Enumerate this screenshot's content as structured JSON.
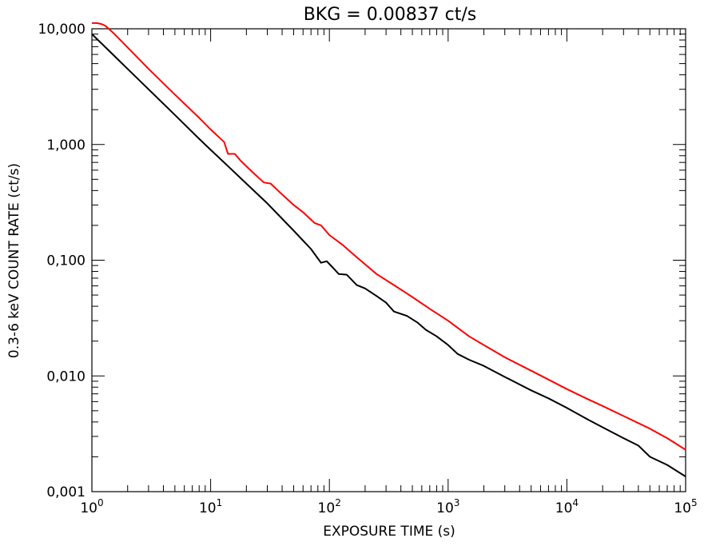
{
  "chart_data": {
    "type": "line",
    "title": "BKG = 0.00837 ct/s",
    "xlabel": "EXPOSURE TIME (s)",
    "ylabel": "0.3-6 keV COUNT RATE (ct/s)",
    "xscale": "log",
    "yscale": "log",
    "xlim": [
      1,
      100000
    ],
    "ylim": [
      0.001,
      10
    ],
    "grid": false,
    "x_ticks": [
      {
        "value": 1,
        "base": "10",
        "exp": "0"
      },
      {
        "value": 10,
        "base": "10",
        "exp": "1"
      },
      {
        "value": 100,
        "base": "10",
        "exp": "2"
      },
      {
        "value": 1000,
        "base": "10",
        "exp": "3"
      },
      {
        "value": 10000,
        "base": "10",
        "exp": "4"
      },
      {
        "value": 100000,
        "base": "10",
        "exp": "5"
      }
    ],
    "y_ticks": [
      {
        "value": 0.001,
        "label": "0,001"
      },
      {
        "value": 0.01,
        "label": "0,010"
      },
      {
        "value": 0.1,
        "label": "0,100"
      },
      {
        "value": 1,
        "label": "1,000"
      },
      {
        "value": 10,
        "label": "10,000"
      }
    ],
    "series": [
      {
        "color": "#ff0000",
        "points": [
          [
            1,
            11.2
          ],
          [
            1.1,
            11.2
          ],
          [
            1.2,
            11.0
          ],
          [
            1.3,
            10.6
          ],
          [
            1.5,
            9.3
          ],
          [
            2,
            6.9
          ],
          [
            3,
            4.5
          ],
          [
            5,
            2.7
          ],
          [
            8,
            1.7
          ],
          [
            10,
            1.35
          ],
          [
            13,
            1.05
          ],
          [
            14,
            0.83
          ],
          [
            16,
            0.83
          ],
          [
            18,
            0.72
          ],
          [
            22,
            0.59
          ],
          [
            28,
            0.47
          ],
          [
            32,
            0.46
          ],
          [
            40,
            0.37
          ],
          [
            50,
            0.3
          ],
          [
            60,
            0.26
          ],
          [
            75,
            0.21
          ],
          [
            85,
            0.2
          ],
          [
            100,
            0.165
          ],
          [
            130,
            0.135
          ],
          [
            170,
            0.106
          ],
          [
            250,
            0.076
          ],
          [
            350,
            0.061
          ],
          [
            500,
            0.048
          ],
          [
            700,
            0.038
          ],
          [
            1000,
            0.03
          ],
          [
            1500,
            0.022
          ],
          [
            2000,
            0.0185
          ],
          [
            3000,
            0.0145
          ],
          [
            5000,
            0.0111
          ],
          [
            7000,
            0.0093
          ],
          [
            10000,
            0.0077
          ],
          [
            15000,
            0.0063
          ],
          [
            20000,
            0.0055
          ],
          [
            30000,
            0.0045
          ],
          [
            50000,
            0.0035
          ],
          [
            70000,
            0.0029
          ],
          [
            100000,
            0.0023
          ]
        ]
      },
      {
        "color": "#000000",
        "points": [
          [
            1,
            9.0
          ],
          [
            1.2,
            7.5
          ],
          [
            1.5,
            6.0
          ],
          [
            2,
            4.5
          ],
          [
            3,
            3.0
          ],
          [
            5,
            1.8
          ],
          [
            8,
            1.12
          ],
          [
            10,
            0.9
          ],
          [
            14,
            0.65
          ],
          [
            20,
            0.46
          ],
          [
            30,
            0.31
          ],
          [
            50,
            0.18
          ],
          [
            70,
            0.125
          ],
          [
            85,
            0.095
          ],
          [
            95,
            0.098
          ],
          [
            105,
            0.088
          ],
          [
            120,
            0.076
          ],
          [
            140,
            0.075
          ],
          [
            170,
            0.061
          ],
          [
            200,
            0.057
          ],
          [
            250,
            0.049
          ],
          [
            300,
            0.043
          ],
          [
            350,
            0.036
          ],
          [
            450,
            0.033
          ],
          [
            550,
            0.029
          ],
          [
            650,
            0.025
          ],
          [
            800,
            0.022
          ],
          [
            1000,
            0.0185
          ],
          [
            1200,
            0.0155
          ],
          [
            1500,
            0.0138
          ],
          [
            2000,
            0.0122
          ],
          [
            3000,
            0.0098
          ],
          [
            5000,
            0.0075
          ],
          [
            7000,
            0.0064
          ],
          [
            10000,
            0.0053
          ],
          [
            15000,
            0.0042
          ],
          [
            20000,
            0.0036
          ],
          [
            30000,
            0.0029
          ],
          [
            40000,
            0.0025
          ],
          [
            50000,
            0.002
          ],
          [
            70000,
            0.0017
          ],
          [
            100000,
            0.00135
          ]
        ]
      }
    ]
  }
}
